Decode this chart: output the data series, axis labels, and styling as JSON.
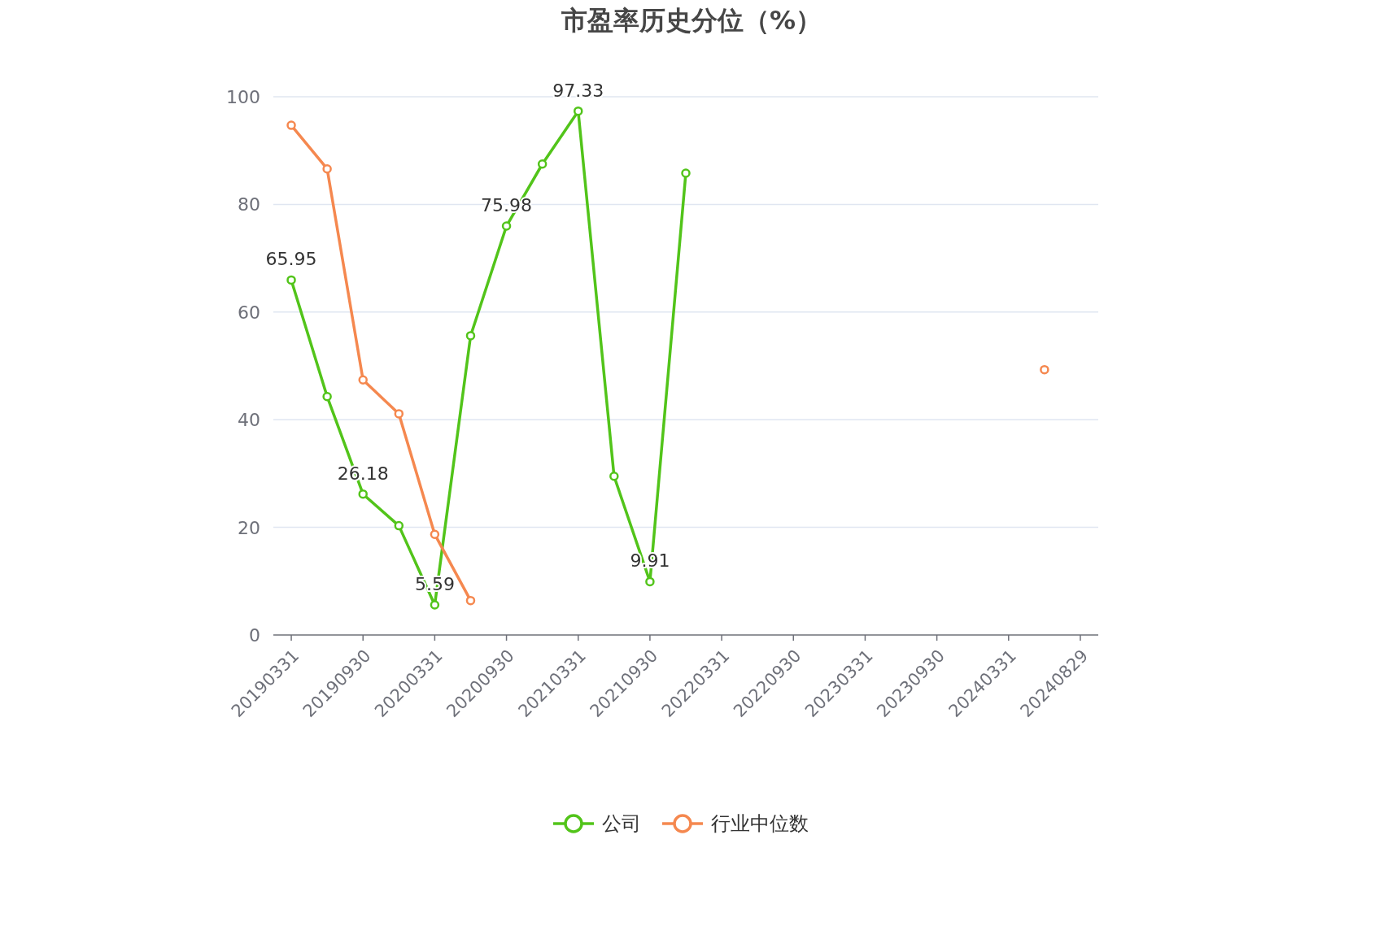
{
  "chart_data": {
    "type": "line",
    "title": "市盈率历史分位（%）",
    "categories": [
      "20190331",
      null,
      "20190930",
      null,
      "20200331",
      null,
      "20200930",
      null,
      "20210331",
      null,
      "20210930",
      null,
      "20220331",
      null,
      "20220930",
      null,
      "20230331",
      null,
      "20230930",
      null,
      "20240331",
      null,
      "20240829"
    ],
    "series": [
      {
        "name": "公司",
        "color": "#52c41a",
        "values": [
          65.95,
          44.3,
          26.18,
          20.3,
          5.59,
          55.6,
          75.98,
          87.5,
          97.33,
          29.5,
          9.91,
          85.8,
          null,
          null,
          null,
          null,
          null,
          null,
          null,
          null,
          null,
          null,
          null
        ],
        "value_labels": [
          "65.95",
          null,
          "26.18",
          null,
          "5.59",
          null,
          "75.98",
          null,
          "97.33",
          null,
          "9.91",
          null,
          null,
          null,
          null,
          null,
          null,
          null,
          null,
          null,
          null,
          null,
          null
        ]
      },
      {
        "name": "行业中位数",
        "color": "#f5884f",
        "values": [
          94.7,
          86.6,
          47.4,
          41.1,
          18.7,
          6.4,
          null,
          null,
          null,
          null,
          null,
          null,
          null,
          null,
          null,
          null,
          null,
          null,
          null,
          null,
          null,
          49.3,
          null
        ]
      }
    ],
    "ylim": [
      0,
      100
    ],
    "yticks": [
      0,
      20,
      40,
      60,
      80,
      100
    ],
    "grid": "y",
    "legend": "bottom",
    "marker": "circle",
    "line_style": "solid"
  }
}
